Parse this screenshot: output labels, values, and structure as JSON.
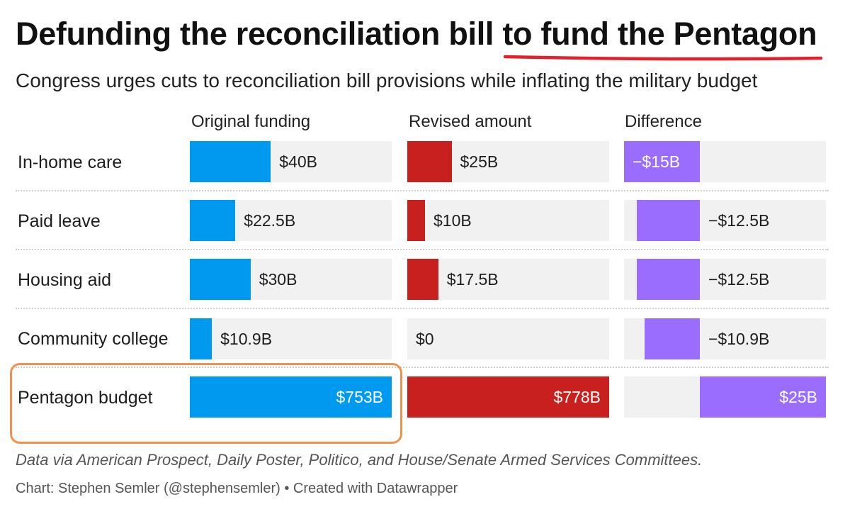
{
  "title": {
    "part1": "Defunding the reconciliation bill ",
    "part2": "to fund the Pentagon"
  },
  "subtitle": "Congress urges cuts to reconciliation bill provisions while inflating the military budget",
  "colors": {
    "original": "#0099f0",
    "revised": "#c81f1f",
    "difference": "#9b6dff",
    "underline": "#e1222c",
    "highlight": "#f0924e",
    "cell_bg": "#f1f1f1"
  },
  "chart_data": {
    "type": "table",
    "columns": [
      "Original funding",
      "Revised amount",
      "Difference"
    ],
    "rows": [
      {
        "label": "In-home care",
        "original": 40,
        "original_label": "$40B",
        "revised": 25,
        "revised_label": "$25B",
        "difference": -15,
        "difference_label": "−$15B"
      },
      {
        "label": "Paid leave",
        "original": 22.5,
        "original_label": "$22.5B",
        "revised": 10,
        "revised_label": "$10B",
        "difference": -12.5,
        "difference_label": "−$12.5B"
      },
      {
        "label": "Housing aid",
        "original": 30,
        "original_label": "$30B",
        "revised": 17.5,
        "revised_label": "$17.5B",
        "difference": -12.5,
        "difference_label": "−$12.5B"
      },
      {
        "label": "Community college",
        "original": 10.9,
        "original_label": "$10.9B",
        "revised": 0,
        "revised_label": "$0",
        "difference": -10.9,
        "difference_label": "−$10.9B"
      },
      {
        "label": "Pentagon budget",
        "original": 753,
        "original_label": "$753B",
        "revised": 778,
        "revised_label": "$778B",
        "difference": 25,
        "difference_label": "$25B"
      }
    ]
  },
  "footer": {
    "source": "Data via American Prospect, Daily Poster, Politico, and House/Senate Armed Services Committees.",
    "credit": "Chart: Stephen Semler (@stephensemler) • Created with Datawrapper"
  }
}
